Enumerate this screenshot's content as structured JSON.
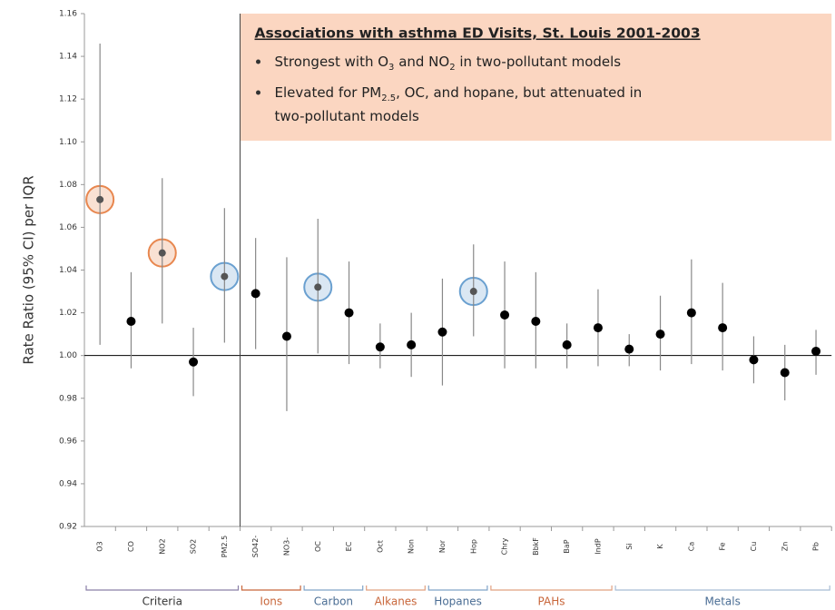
{
  "chart_data": {
    "type": "errorbar",
    "ylabel": "Rate Ratio (95% CI) per IQR",
    "categories": [
      "O3",
      "CO",
      "NO2",
      "SO2",
      "PM2.5",
      "SO42-",
      "NO3-",
      "OC",
      "EC",
      "Oct",
      "Non",
      "Nor",
      "Hop",
      "Chry",
      "BbkF",
      "BaP",
      "IndP",
      "Si",
      "K",
      "Ca",
      "Fe",
      "Cu",
      "Zn",
      "Pb"
    ],
    "values": [
      1.073,
      1.016,
      1.048,
      0.997,
      1.037,
      1.029,
      1.009,
      1.032,
      1.02,
      1.004,
      1.005,
      1.011,
      1.03,
      1.019,
      1.016,
      1.005,
      1.013,
      1.003,
      1.01,
      1.02,
      1.013,
      0.998,
      0.992,
      1.002
    ],
    "lower": [
      1.005,
      0.994,
      1.015,
      0.981,
      1.006,
      1.003,
      0.974,
      1.001,
      0.996,
      0.994,
      0.99,
      0.986,
      1.009,
      0.994,
      0.994,
      0.994,
      0.995,
      0.995,
      0.993,
      0.996,
      0.993,
      0.987,
      0.979,
      0.991
    ],
    "upper": [
      1.146,
      1.039,
      1.083,
      1.013,
      1.069,
      1.055,
      1.046,
      1.064,
      1.044,
      1.015,
      1.02,
      1.036,
      1.052,
      1.044,
      1.039,
      1.015,
      1.031,
      1.01,
      1.028,
      1.045,
      1.034,
      1.009,
      1.005,
      1.012
    ],
    "color": "#000000",
    "highlight_colors": [
      "#e8874f",
      null,
      "#e8874f",
      null,
      "#6aa0d0",
      null,
      null,
      "#6aa0d0",
      null,
      null,
      null,
      null,
      "#6aa0d0",
      null,
      null,
      null,
      null,
      null,
      null,
      null,
      null,
      null,
      null,
      null
    ],
    "reference_line": 1,
    "ylim": [
      0.92,
      1.16
    ],
    "yticks": [
      0.92,
      0.94,
      0.96,
      0.98,
      {
        "value": 1.0,
        "label": "1.00"
      },
      1.02,
      1.04,
      1.06,
      1.08,
      {
        "value": 1.1,
        "label": "1.10"
      },
      1.12,
      1.14,
      1.16
    ],
    "groups": [
      {
        "name": "Criteria",
        "count": 5,
        "color": "#333333",
        "bracket": "#8a7fa8"
      },
      {
        "name": "Ions",
        "count": 2,
        "color": "#c8663a",
        "bracket": "#c8663a"
      },
      {
        "name": "Carbon",
        "count": 2,
        "color": "#4a6d94",
        "bracket": "#7fa3c8"
      },
      {
        "name": "Alkanes",
        "count": 2,
        "color": "#c8663a",
        "bracket": "#e0a080"
      },
      {
        "name": "Hopanes",
        "count": 2,
        "color": "#4a6d94",
        "bracket": "#7fa3c8"
      },
      {
        "name": "PAHs",
        "count": 4,
        "color": "#c8663a",
        "bracket": "#e0a080"
      },
      {
        "name": "Metals",
        "count": 7,
        "color": "#4a6d94",
        "bracket": "#a8bcd4"
      }
    ],
    "annotation": {
      "title": "Associations with asthma ED Visits, St. Louis 2001-2003",
      "bullets": [
        [
          {
            "text": "Strongest with O"
          },
          {
            "text": "3",
            "sub": true
          },
          {
            "text": " and NO"
          },
          {
            "text": "2",
            "sub": true
          },
          {
            "text": " in two-pollutant models"
          }
        ],
        [
          {
            "text": "Elevated for PM"
          },
          {
            "text": "2.5",
            "sub": true
          },
          {
            "text": ", OC, and hopane, but attenuated in"
          }
        ],
        [
          {
            "text": "two-pollutant models"
          }
        ]
      ]
    }
  }
}
